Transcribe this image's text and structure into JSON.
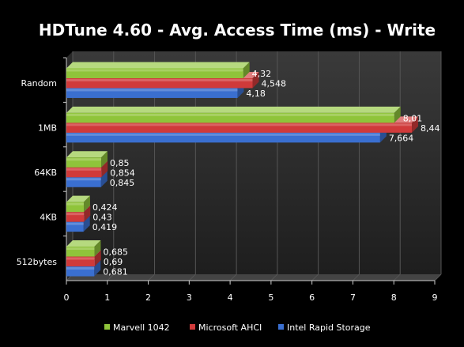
{
  "chart_data": {
    "type": "bar",
    "orientation": "horizontal",
    "title": "HDTune 4.60 - Avg. Access Time (ms) - Write",
    "categories": [
      "Random",
      "1MB",
      "64KB",
      "4KB",
      "512bytes"
    ],
    "series": [
      {
        "name": "Marvell 1042",
        "color": "#8fc43a",
        "values": [
          4.32,
          8.01,
          0.85,
          0.424,
          0.685
        ],
        "labels": [
          "4,32",
          "8,01",
          "0,85",
          "0,424",
          "0,685"
        ]
      },
      {
        "name": "Microsoft AHCI",
        "color": "#d03a3a",
        "values": [
          4.548,
          8.44,
          0.854,
          0.43,
          0.69
        ],
        "labels": [
          "4,548",
          "8,44",
          "0,854",
          "0,43",
          "0,69"
        ]
      },
      {
        "name": "Intel Rapid Storage",
        "color": "#3a6fd0",
        "values": [
          4.18,
          7.664,
          0.845,
          0.419,
          0.681
        ],
        "labels": [
          "4,18",
          "7,664",
          "0,845",
          "0,419",
          "0,681"
        ]
      }
    ],
    "xlim": [
      0,
      9
    ],
    "xticks": [
      "0",
      "1",
      "2",
      "3",
      "4",
      "5",
      "6",
      "7",
      "8",
      "9"
    ],
    "grid": true,
    "legend_position": "bottom"
  }
}
